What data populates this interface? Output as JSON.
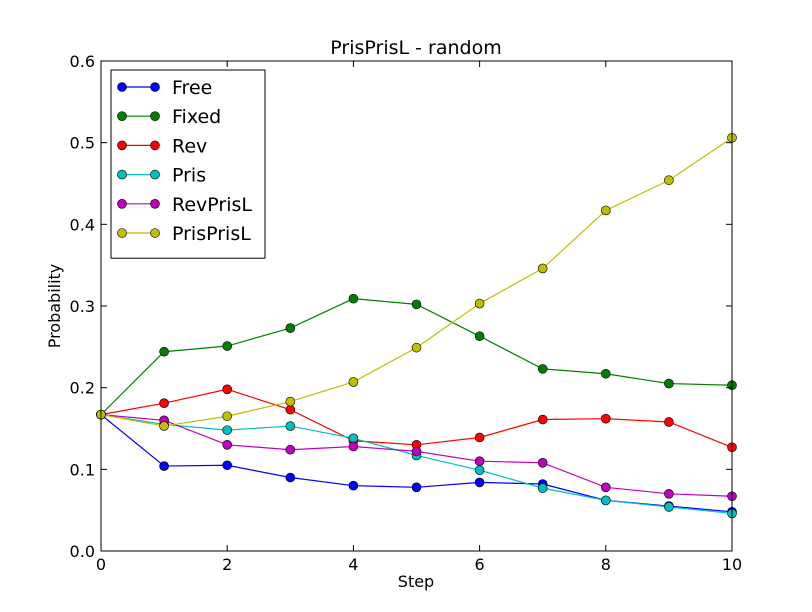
{
  "chart_data": {
    "type": "line",
    "title": "PrisPrisL - random",
    "xlabel": "Step",
    "ylabel": "Probability",
    "xlim": [
      0,
      10
    ],
    "ylim": [
      0,
      0.6
    ],
    "xticks": [
      0,
      2,
      4,
      6,
      8,
      10
    ],
    "yticks": [
      0.0,
      0.1,
      0.2,
      0.3,
      0.4,
      0.5,
      0.6
    ],
    "xtick_labels": [
      "0",
      "2",
      "4",
      "6",
      "8",
      "10"
    ],
    "ytick_labels": [
      "0.0",
      "0.1",
      "0.2",
      "0.3",
      "0.4",
      "0.5",
      "0.6"
    ],
    "grid": false,
    "legend_position": "top-left",
    "x": [
      0,
      1,
      2,
      3,
      4,
      5,
      6,
      7,
      8,
      9,
      10
    ],
    "series": [
      {
        "name": "Free",
        "color": "#0000ff",
        "values": [
          0.167,
          0.104,
          0.105,
          0.09,
          0.08,
          0.078,
          0.084,
          0.082,
          0.062,
          0.055,
          0.048
        ]
      },
      {
        "name": "Fixed",
        "color": "#008000",
        "values": [
          0.167,
          0.244,
          0.251,
          0.273,
          0.309,
          0.302,
          0.263,
          0.223,
          0.217,
          0.205,
          0.203
        ]
      },
      {
        "name": "Rev",
        "color": "#ff0000",
        "values": [
          0.167,
          0.181,
          0.198,
          0.173,
          0.135,
          0.13,
          0.139,
          0.161,
          0.162,
          0.158,
          0.127
        ]
      },
      {
        "name": "Pris",
        "color": "#00bfbf",
        "values": [
          0.167,
          0.155,
          0.148,
          0.153,
          0.138,
          0.117,
          0.099,
          0.077,
          0.062,
          0.054,
          0.046
        ]
      },
      {
        "name": "RevPrisL",
        "color": "#bf00bf",
        "values": [
          0.167,
          0.16,
          0.13,
          0.124,
          0.128,
          0.122,
          0.11,
          0.108,
          0.078,
          0.07,
          0.067
        ]
      },
      {
        "name": "PrisPrisL",
        "color": "#bfbf00",
        "values": [
          0.167,
          0.153,
          0.165,
          0.183,
          0.207,
          0.249,
          0.303,
          0.346,
          0.417,
          0.454,
          0.506
        ]
      }
    ]
  }
}
